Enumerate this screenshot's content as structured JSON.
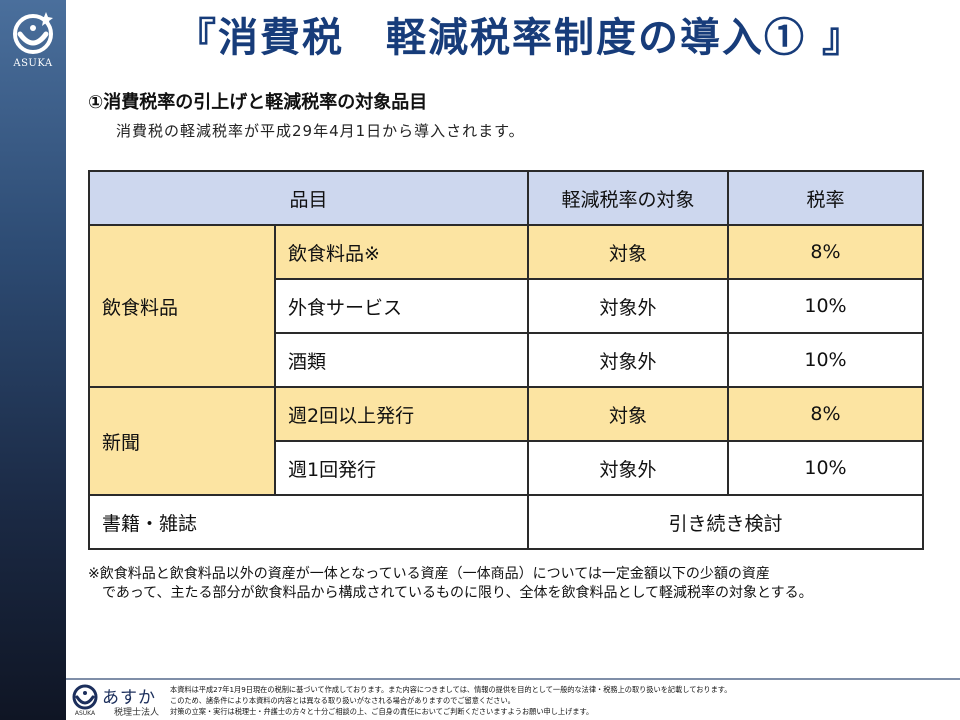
{
  "brand": {
    "logo_text": "ASUKA",
    "footer_logo_label": "ASUKA",
    "footer_brand": "あすか",
    "footer_brand_sub": "税理士法人"
  },
  "title": "『消費税　軽減税率制度の導入① 』",
  "section": {
    "heading": "①消費税率の引上げと軽減税率の対象品目",
    "subtitle": "消費税の軽減税率が平成29年4月1日から導入されます。"
  },
  "table": {
    "headers": [
      "品目",
      "軽減税率の対象",
      "税率"
    ],
    "groups": [
      {
        "category": "飲食料品",
        "rows": [
          {
            "item": "飲食料品※",
            "target": "対象",
            "rate": "8%"
          },
          {
            "item": "外食サービス",
            "target": "対象外",
            "rate": "10%"
          },
          {
            "item": "酒類",
            "target": "対象外",
            "rate": "10%"
          }
        ]
      },
      {
        "category": "新聞",
        "rows": [
          {
            "item": "週2回以上発行",
            "target": "対象",
            "rate": "8%"
          },
          {
            "item": "週1回発行",
            "target": "対象外",
            "rate": "10%"
          }
        ]
      }
    ],
    "last_row": {
      "category": "書籍・雑誌",
      "value": "引き続き検討"
    }
  },
  "note": {
    "line1": "※飲食料品と飲食料品以外の資産が一体となっている資産（一体商品）については一定金額以下の少額の資産",
    "line2": "であって、主たる部分が飲食料品から構成されているものに限り、全体を飲食料品として軽減税率の対象とする。"
  },
  "disclaimer": {
    "line1": "本資料は平成27年1月9日現在の税制に基づいて作成しております。また内容につきましては、情報の提供を目的として一般的な法律・税務上の取り扱いを記載しております。",
    "line2": "このため、諸条件により本資料の内容とは異なる取り扱いがなされる場合がありますのでご留意ください。",
    "line3": "対策の立案・実行は税理士・弁護士の方々と十分ご相談の上、ご自身の責任においてご判断くださいますようお願い申し上げます。"
  },
  "colors": {
    "title": "#173c7a",
    "header_bg": "#cdd7ee",
    "highlight_bg": "#fce4a2"
  }
}
